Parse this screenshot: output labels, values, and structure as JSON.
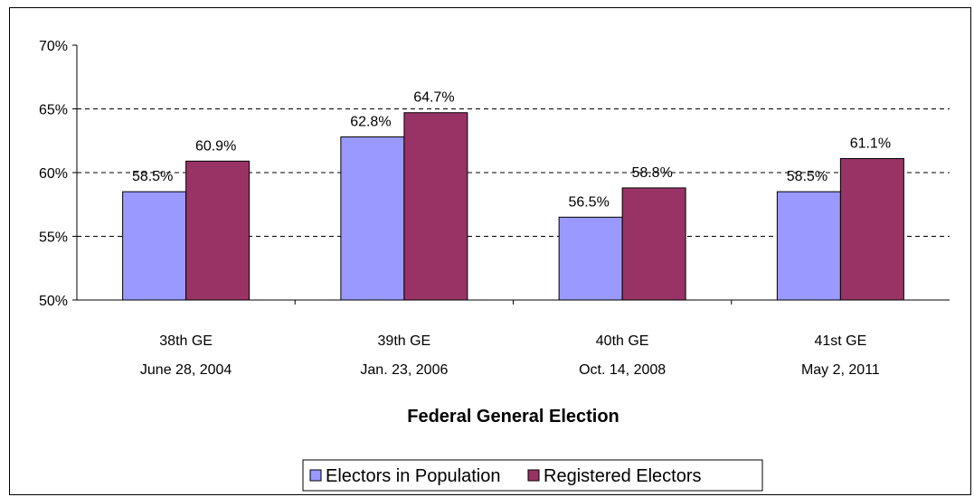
{
  "chart_data": {
    "type": "bar",
    "title": "",
    "xlabel": "Federal General Election",
    "ylabel": "",
    "categories": [
      [
        "38th GE",
        "June 28, 2004"
      ],
      [
        "39th GE",
        "Jan. 23, 2006"
      ],
      [
        "40th GE",
        "Oct. 14, 2008"
      ],
      [
        "41st GE",
        "May 2, 2011"
      ]
    ],
    "series": [
      {
        "name": "Electors in Population",
        "color": "#9999ff",
        "values": [
          58.5,
          62.8,
          56.5,
          58.5
        ],
        "labels": [
          "58.5%",
          "62.8%",
          "56.5%",
          "58.5%"
        ]
      },
      {
        "name": "Registered Electors",
        "color": "#993366",
        "values": [
          60.9,
          64.7,
          58.8,
          61.1
        ],
        "labels": [
          "60.9%",
          "64.7%",
          "58.8%",
          "61.1%"
        ]
      }
    ],
    "ylim": [
      50,
      70
    ],
    "yticks": [
      {
        "value": 50,
        "label": "50%"
      },
      {
        "value": 55,
        "label": "55%"
      },
      {
        "value": 60,
        "label": "60%"
      },
      {
        "value": 65,
        "label": "65%"
      },
      {
        "value": 70,
        "label": "70%"
      }
    ],
    "grid": "dashed horizontal",
    "legend": "bottom-center"
  }
}
